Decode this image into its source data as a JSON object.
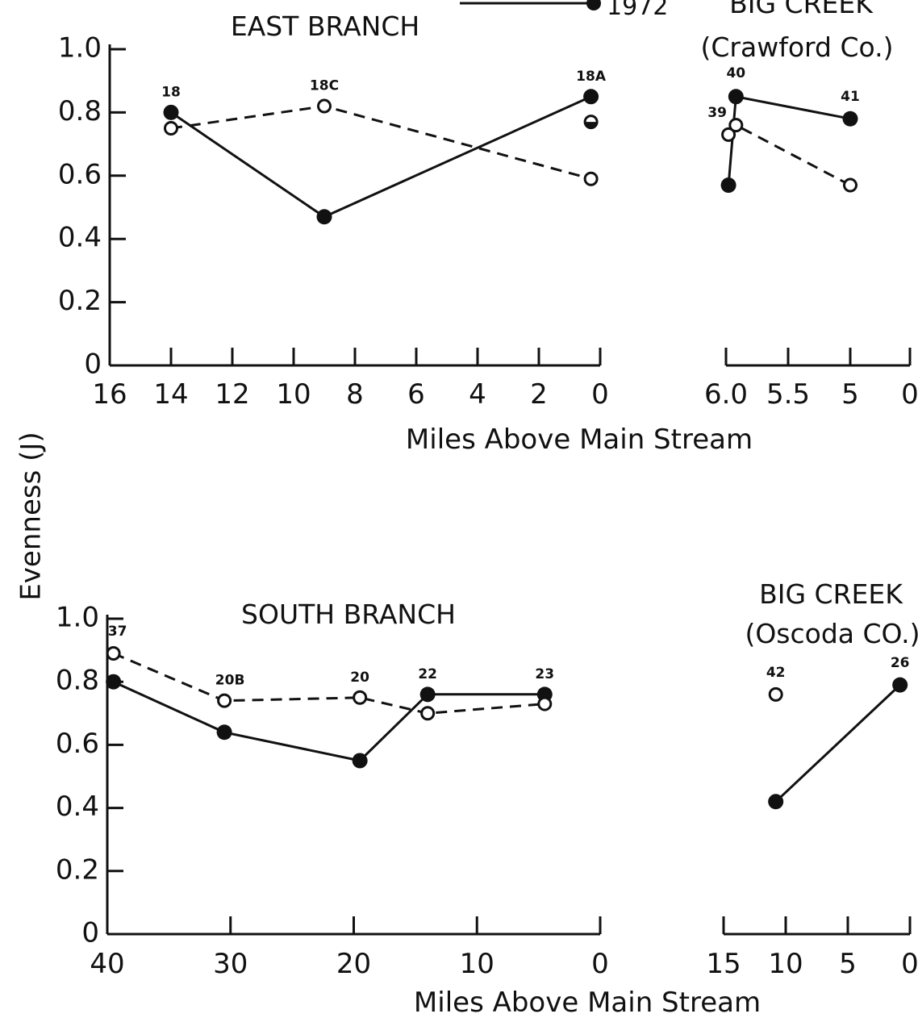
{
  "y_axis_label": "Evenness (J)",
  "legend": {
    "solid_filled_label": "1972"
  },
  "colors": {
    "ink": "#111111",
    "open_fill": "#ffffff"
  },
  "chart_data": [
    {
      "type": "line",
      "title": "EAST BRANCH",
      "xlabel": "Miles Above Main Stream",
      "ylabel": "Evenness (J)",
      "xlim": [
        16,
        0
      ],
      "ylim": [
        0,
        1.0
      ],
      "x_ticks": [
        16,
        14,
        12,
        10,
        8,
        6,
        4,
        2,
        0
      ],
      "y_ticks": [
        0,
        0.2,
        0.4,
        0.6,
        0.8,
        1.0
      ],
      "y_tick_labels": [
        "0",
        "0.2",
        "0.4",
        "0.6",
        "0.8",
        "1.0"
      ],
      "series": [
        {
          "name": "1972",
          "style": "solid-filled",
          "points": [
            {
              "x": 14,
              "y": 0.8
            },
            {
              "x": 9,
              "y": 0.47
            },
            {
              "x": 0.3,
              "y": 0.85
            }
          ]
        },
        {
          "style": "dashed-open",
          "points": [
            {
              "x": 14,
              "y": 0.75
            },
            {
              "x": 9,
              "y": 0.82
            },
            {
              "x": 0.3,
              "y": 0.59
            }
          ]
        },
        {
          "style": "half-filled",
          "points": [
            {
              "x": 0.3,
              "y": 0.77
            }
          ]
        }
      ],
      "point_labels": [
        {
          "text": "18",
          "x": 14,
          "y": 0.8
        },
        {
          "text": "18C",
          "x": 9,
          "y": 0.82
        },
        {
          "text": "18A",
          "x": 0.3,
          "y": 0.85
        }
      ]
    },
    {
      "type": "line",
      "title": "BIG CREEK",
      "subtitle": "(Crawford Co.)",
      "xlabel": "",
      "x_tick_values": [
        6.0,
        5.5,
        5,
        0
      ],
      "x_tick_labels": [
        "6.0",
        "5.5",
        "5",
        "0"
      ],
      "ylim": [
        0,
        1.0
      ],
      "series": [
        {
          "name": "1972",
          "style": "solid-filled",
          "points": [
            {
              "x": 5.98,
              "y": 0.57
            },
            {
              "x": 5.92,
              "y": 0.85
            },
            {
              "x": 5.0,
              "y": 0.78
            }
          ]
        },
        {
          "style": "dashed-open",
          "points": [
            {
              "x": 5.98,
              "y": 0.73
            },
            {
              "x": 5.92,
              "y": 0.76
            },
            {
              "x": 5.0,
              "y": 0.57
            }
          ]
        }
      ],
      "point_labels": [
        {
          "text": "39",
          "x": 5.98,
          "y": 0.73
        },
        {
          "text": "40",
          "x": 5.92,
          "y": 0.85
        },
        {
          "text": "41",
          "x": 5.0,
          "y": 0.78
        }
      ]
    },
    {
      "type": "line",
      "title": "SOUTH BRANCH",
      "xlabel": "Miles Above Main Stream",
      "ylabel": "Evenness (J)",
      "xlim": [
        40,
        0
      ],
      "ylim": [
        0,
        1.0
      ],
      "x_ticks": [
        40,
        30,
        20,
        10,
        0
      ],
      "y_ticks": [
        0,
        0.2,
        0.4,
        0.6,
        0.8,
        1.0
      ],
      "y_tick_labels": [
        "0",
        "0.2",
        "0.4",
        "0.6",
        "0.8",
        "1.0"
      ],
      "series": [
        {
          "name": "1972",
          "style": "solid-filled",
          "points": [
            {
              "x": 39.5,
              "y": 0.8
            },
            {
              "x": 30.5,
              "y": 0.64
            },
            {
              "x": 19.5,
              "y": 0.55
            },
            {
              "x": 14,
              "y": 0.76
            },
            {
              "x": 4.5,
              "y": 0.76
            }
          ]
        },
        {
          "style": "dashed-open",
          "points": [
            {
              "x": 39.5,
              "y": 0.89
            },
            {
              "x": 30.5,
              "y": 0.74
            },
            {
              "x": 19.5,
              "y": 0.75
            },
            {
              "x": 14,
              "y": 0.7
            },
            {
              "x": 4.5,
              "y": 0.73
            }
          ]
        }
      ],
      "point_labels": [
        {
          "text": "37",
          "x": 39.5,
          "y": 0.89
        },
        {
          "text": "20B",
          "x": 30.5,
          "y": 0.74
        },
        {
          "text": "20",
          "x": 19.5,
          "y": 0.75
        },
        {
          "text": "22",
          "x": 14,
          "y": 0.76
        },
        {
          "text": "23",
          "x": 4.5,
          "y": 0.76
        }
      ]
    },
    {
      "type": "line",
      "title": "BIG CREEK",
      "subtitle": "(Oscoda CO.)",
      "xlabel": "",
      "xlim": [
        15,
        0
      ],
      "ylim": [
        0,
        1.0
      ],
      "x_ticks": [
        15,
        10,
        5,
        0
      ],
      "series": [
        {
          "name": "1972",
          "style": "solid-filled",
          "points": [
            {
              "x": 10.8,
              "y": 0.42
            },
            {
              "x": 0.8,
              "y": 0.79
            }
          ]
        },
        {
          "style": "dashed-open",
          "points": [
            {
              "x": 10.8,
              "y": 0.76
            }
          ]
        }
      ],
      "point_labels": [
        {
          "text": "42",
          "x": 10.8,
          "y": 0.76
        },
        {
          "text": "26",
          "x": 0.8,
          "y": 0.79
        }
      ]
    }
  ]
}
